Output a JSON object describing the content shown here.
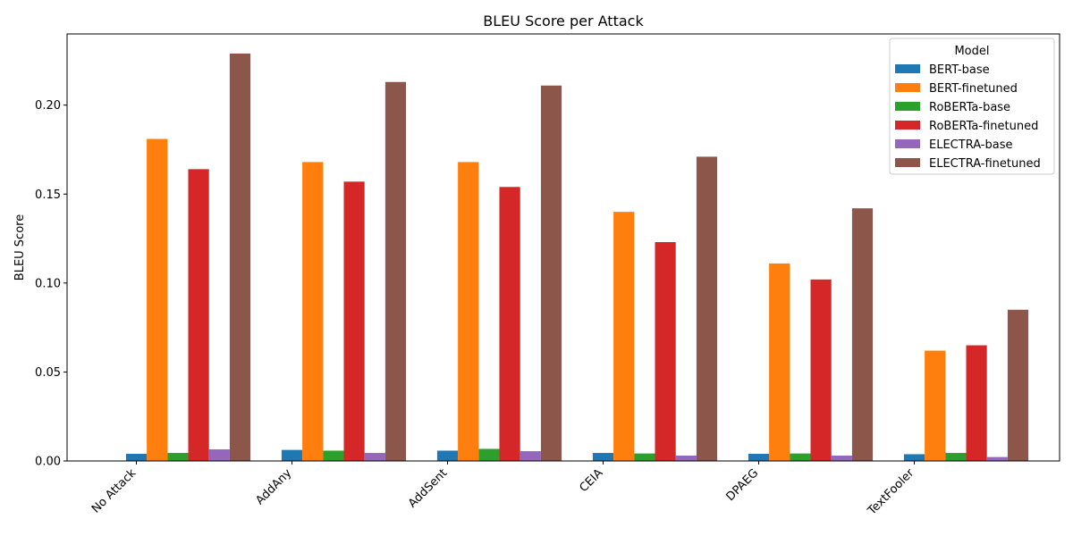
{
  "chart_data": {
    "type": "bar",
    "title": "BLEU Score per Attack",
    "xlabel": "",
    "ylabel": "BLEU Score",
    "ylim": [
      0,
      0.24
    ],
    "yticks": [
      0.0,
      0.05,
      0.1,
      0.15,
      0.2
    ],
    "ytick_labels": [
      "0.00",
      "0.05",
      "0.10",
      "0.15",
      "0.20"
    ],
    "grid": false,
    "legend": {
      "title": "Model",
      "placement": "top-right"
    },
    "categories": [
      "No Attack",
      "AddAny",
      "AddSent",
      "CEIA",
      "DPAEG",
      "TextFooler"
    ],
    "series": [
      {
        "name": "BERT-base",
        "color": "#1f77b4",
        "values": [
          0.004,
          0.0062,
          0.0058,
          0.0045,
          0.004,
          0.0038
        ]
      },
      {
        "name": "BERT-finetuned",
        "color": "#ff7f0e",
        "values": [
          0.181,
          0.168,
          0.168,
          0.14,
          0.111,
          0.062
        ]
      },
      {
        "name": "RoBERTa-base",
        "color": "#2ca02c",
        "values": [
          0.0045,
          0.0058,
          0.0068,
          0.0042,
          0.0042,
          0.0045
        ]
      },
      {
        "name": "RoBERTa-finetuned",
        "color": "#d62728",
        "values": [
          0.164,
          0.157,
          0.154,
          0.123,
          0.102,
          0.065
        ]
      },
      {
        "name": "ELECTRA-base",
        "color": "#9467bd",
        "values": [
          0.0065,
          0.0045,
          0.0055,
          0.003,
          0.003,
          0.0022
        ]
      },
      {
        "name": "ELECTRA-finetuned",
        "color": "#8c564b",
        "values": [
          0.229,
          0.213,
          0.211,
          0.171,
          0.142,
          0.085
        ]
      }
    ]
  }
}
